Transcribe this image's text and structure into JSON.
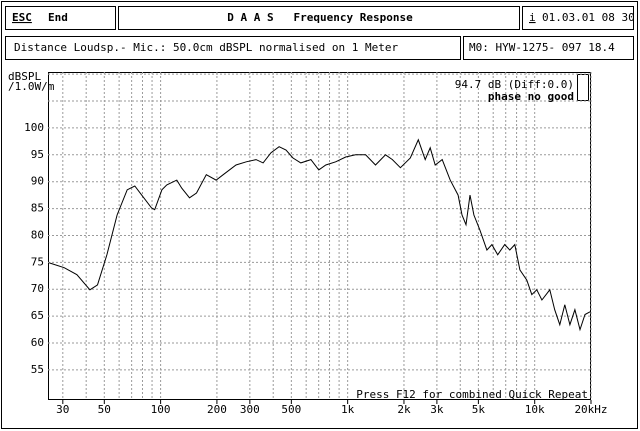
{
  "header": {
    "esc": "ESC",
    "end": "End",
    "title": "D A A S   Frequency Response",
    "info": "i",
    "date": "01.03.01 08 30"
  },
  "info": {
    "distance": "Distance Loudsp.- Mic.: 50.0cm dBSPL normalised on 1 Meter",
    "model": "M0: HYW-1275- 097 18.4"
  },
  "chart_data": {
    "type": "line",
    "ylabel": [
      "dBSPL",
      "/1.0W/m"
    ],
    "annotations": [
      "94.7 dB (Diff:0.0)",
      "phase no good",
      "Press F12 for combined Quick Repeat"
    ],
    "xscale": "log",
    "grid": true,
    "color": "#000000",
    "xlim": [
      25,
      20000
    ],
    "ylim": [
      49.4,
      110.4
    ],
    "yticks": [
      55,
      60,
      65,
      70,
      75,
      80,
      85,
      90,
      95,
      100
    ],
    "xticks": [
      30,
      50,
      100,
      200,
      300,
      500,
      {
        "value": 1000,
        "label": "1k"
      },
      {
        "value": 2000,
        "label": "2k"
      },
      {
        "value": 3000,
        "label": "3k"
      },
      {
        "value": 5000,
        "label": "5k"
      },
      {
        "value": 10000,
        "label": "10k"
      },
      {
        "value": 20000,
        "label": "20kHz"
      }
    ],
    "xgrid": [
      30,
      40,
      50,
      60,
      70,
      80,
      90,
      100,
      200,
      300,
      400,
      500,
      600,
      700,
      800,
      900,
      1000,
      2000,
      3000,
      4000,
      5000,
      6000,
      7000,
      8000,
      9000,
      10000,
      20000
    ],
    "ygrid": [
      55,
      60,
      65,
      70,
      75,
      80,
      85,
      90,
      95,
      100,
      105,
      110
    ],
    "x": [
      25.4,
      30.5,
      35.7,
      41.9,
      46,
      51.6,
      58.5,
      66.3,
      72.8,
      79.2,
      89.5,
      93,
      101.6,
      107.9,
      122,
      129.6,
      142.7,
      155.6,
      175.5,
      198,
      216,
      253,
      287,
      324,
      353,
      389,
      430,
      468,
      510,
      562,
      636,
      701,
      764,
      863,
      976,
      1103,
      1247,
      1409,
      1593,
      1735,
      1914,
      2163,
      2386,
      2598,
      2763,
      2937,
      3203,
      3532,
      3894,
      4084,
      4292,
      4507,
      4734,
      5093,
      5550,
      5903,
      6344,
      6914,
      7357,
      7826,
      8330,
      9069,
      9650,
      10265,
      10930,
      12040,
      12800,
      13620,
      14490,
      15420,
      16400,
      17460,
      18580,
      19760
    ],
    "values": [
      74.9,
      74,
      72.7,
      69.9,
      70.8,
      76.4,
      83.8,
      88.5,
      89.2,
      87.5,
      85.1,
      84.8,
      88.5,
      89.4,
      90.3,
      88.8,
      87,
      87.9,
      91.3,
      90.3,
      91.3,
      93.1,
      93.7,
      94.1,
      93.5,
      95.4,
      96.5,
      95.9,
      94.4,
      93.5,
      94.1,
      92.2,
      93.1,
      93.7,
      94.6,
      95,
      95,
      93.1,
      95,
      94.1,
      92.6,
      94.4,
      97.8,
      94.1,
      96.3,
      93.1,
      94.1,
      90.3,
      87.5,
      83.8,
      82,
      87.5,
      83.8,
      81,
      77.3,
      78.3,
      76.4,
      78.3,
      77.3,
      78.3,
      73.6,
      71.7,
      69,
      69.9,
      68,
      69.9,
      66.2,
      63.4,
      67.1,
      63.4,
      66.2,
      62.5,
      65.3,
      65.8
    ]
  }
}
